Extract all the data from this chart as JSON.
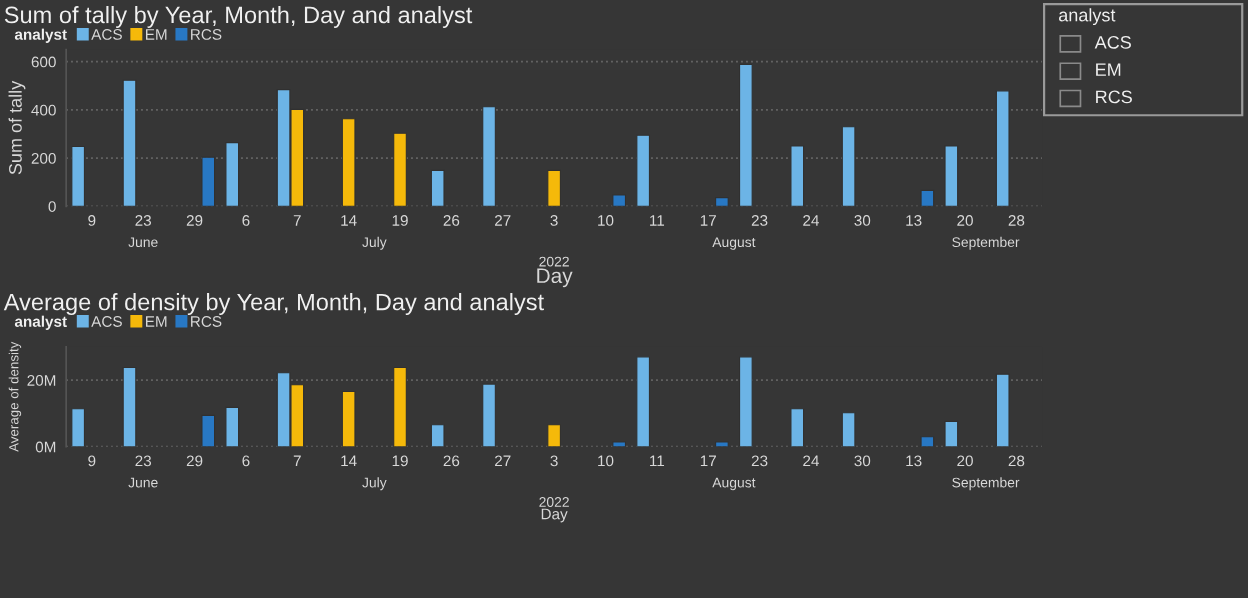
{
  "chart_data": [
    {
      "type": "bar",
      "title": "Sum of tally by Year, Month, Day and analyst",
      "xlabel": "Day",
      "ylabel": "Sum of tally",
      "legend_title": "analyst",
      "legend": "top left",
      "grid": "y",
      "categories": [
        "9",
        "23",
        "29",
        "6",
        "7",
        "14",
        "19",
        "26",
        "27",
        "3",
        "10",
        "11",
        "17",
        "23",
        "24",
        "30",
        "13",
        "20",
        "28"
      ],
      "series": [
        {
          "name": "ACS",
          "color": "#6cb4e6",
          "values": [
            248,
            523,
            null,
            264,
            484,
            null,
            null,
            149,
            413,
            null,
            null,
            295,
            null,
            589,
            250,
            330,
            null,
            250,
            479
          ]
        },
        {
          "name": "EM",
          "color": "#f5b90a",
          "values": [
            null,
            null,
            null,
            null,
            402,
            363,
            303,
            null,
            null,
            149,
            null,
            null,
            null,
            null,
            null,
            null,
            null,
            null,
            null
          ]
        },
        {
          "name": "RCS",
          "color": "#2878c4",
          "values": [
            null,
            null,
            204,
            null,
            null,
            null,
            null,
            null,
            null,
            null,
            47,
            null,
            36,
            null,
            null,
            null,
            66,
            null,
            null
          ]
        }
      ],
      "ylim": [
        0,
        650
      ],
      "yticks": [
        0,
        200,
        400,
        600
      ],
      "annotations": [
        "June",
        "July",
        "August",
        "September",
        "2022"
      ]
    },
    {
      "type": "bar",
      "title": "Average of density by Year, Month, Day and analyst",
      "xlabel": "Day",
      "ylabel": "Average of density",
      "legend_title": "analyst",
      "legend": "top left",
      "grid": "y",
      "categories": [
        "9",
        "23",
        "29",
        "6",
        "7",
        "14",
        "19",
        "26",
        "27",
        "3",
        "10",
        "11",
        "17",
        "23",
        "24",
        "30",
        "13",
        "20",
        "28"
      ],
      "series": [
        {
          "name": "ACS",
          "color": "#6cb4e6",
          "values": [
            11.4,
            23.8,
            null,
            11.8,
            22.2,
            null,
            null,
            6.6,
            18.8,
            null,
            null,
            27,
            null,
            27,
            11.4,
            10.2,
            null,
            7.6,
            21.8
          ]
        },
        {
          "name": "EM",
          "color": "#f5b90a",
          "values": [
            null,
            null,
            null,
            null,
            18.6,
            16.6,
            23.8,
            null,
            null,
            6.6,
            null,
            null,
            null,
            null,
            null,
            null,
            null,
            null,
            null
          ]
        },
        {
          "name": "RCS",
          "color": "#2878c4",
          "values": [
            null,
            null,
            9.4,
            null,
            null,
            null,
            null,
            null,
            null,
            null,
            1.4,
            null,
            1.4,
            null,
            null,
            null,
            3,
            null,
            null
          ]
        }
      ],
      "ylim": [
        0,
        30
      ],
      "yticks": [
        {
          "value": 0,
          "label": "0M"
        },
        {
          "value": 20,
          "label": "20M"
        }
      ],
      "annotations": [
        "June",
        "July",
        "August",
        "September",
        "2022"
      ]
    },
    {
      "type": "other",
      "title": "analyst",
      "categories": [
        "ACS",
        "EM",
        "RCS"
      ]
    }
  ]
}
